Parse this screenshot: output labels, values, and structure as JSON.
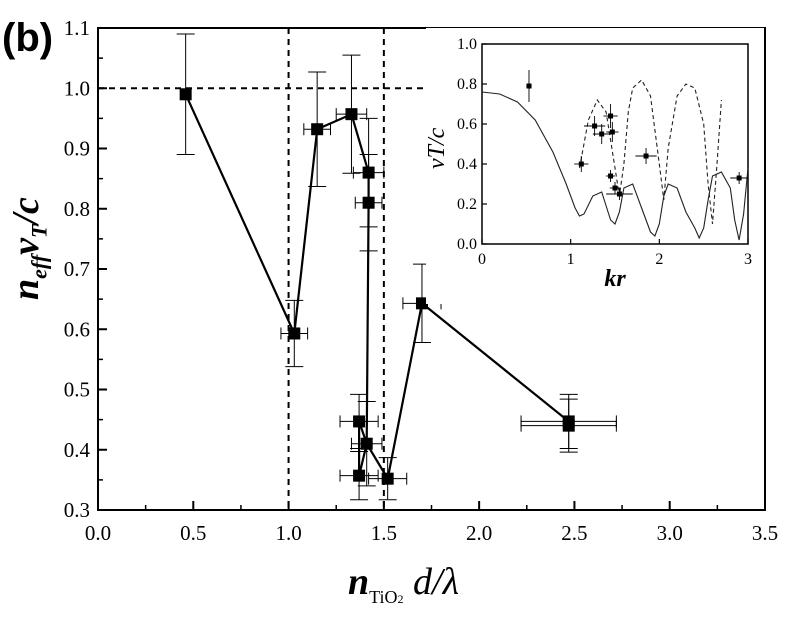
{
  "panel_label": "(b)",
  "main_ylabel": {
    "base": "n",
    "sub": "eff",
    "mid": "v",
    "mid_sub": "T",
    "tail": "/c"
  },
  "main_xlabel": {
    "base": "n",
    "sub": "TiO",
    "sub2": "2",
    "tail": " d/λ"
  },
  "chart_data": [
    {
      "name": "main",
      "type": "line",
      "xlim": [
        0.0,
        3.5
      ],
      "ylim": [
        0.3,
        1.1
      ],
      "xticks": [
        "0.0",
        "0.5",
        "1.0",
        "1.5",
        "2.0",
        "2.5",
        "3.0",
        "3.5"
      ],
      "yticks": [
        "0.3",
        "0.4",
        "0.5",
        "0.6",
        "0.7",
        "0.8",
        "0.9",
        "1.0",
        "1.1"
      ],
      "reference_lines": {
        "horizontal": [
          1.0
        ],
        "vertical": [
          1.0,
          1.5
        ]
      },
      "series": [
        {
          "name": "measured",
          "points": [
            {
              "x": 0.46,
              "y": 0.99,
              "xerr": 0.0,
              "yerr": 0.1
            },
            {
              "x": 1.03,
              "y": 0.593,
              "xerr": 0.07,
              "yerr": 0.055
            },
            {
              "x": 1.15,
              "y": 0.932,
              "xerr": 0.07,
              "yerr": 0.095
            },
            {
              "x": 1.33,
              "y": 0.957,
              "xerr": 0.08,
              "yerr": 0.098
            },
            {
              "x": 1.42,
              "y": 0.86,
              "xerr": 0.08,
              "yerr": 0.09
            },
            {
              "x": 1.42,
              "y": 0.81,
              "xerr": 0.07,
              "yerr": 0.08
            },
            {
              "x": 1.37,
              "y": 0.447,
              "xerr": 0.1,
              "yerr": 0.045
            },
            {
              "x": 1.37,
              "y": 0.357,
              "xerr": 0.1,
              "yerr": 0.04
            },
            {
              "x": 1.41,
              "y": 0.41,
              "xerr": 0.08,
              "yerr": 0.07
            },
            {
              "x": 1.52,
              "y": 0.352,
              "xerr": 0.1,
              "yerr": 0.035
            },
            {
              "x": 1.7,
              "y": 0.643,
              "xerr": 0.1,
              "yerr": 0.065
            },
            {
              "x": 2.47,
              "y": 0.447,
              "xerr": 0.25,
              "yerr": 0.045
            },
            {
              "x": 2.47,
              "y": 0.44,
              "xerr": 0.25,
              "yerr": 0.044
            }
          ],
          "line_order": [
            [
              0.46,
              0.99
            ],
            [
              1.03,
              0.593
            ],
            [
              1.15,
              0.932
            ],
            [
              1.33,
              0.957
            ],
            [
              1.42,
              0.86
            ],
            [
              1.42,
              0.81
            ],
            [
              1.41,
              0.41
            ],
            [
              1.37,
              0.357
            ],
            [
              1.37,
              0.447
            ],
            [
              1.41,
              0.41
            ],
            [
              1.52,
              0.352
            ],
            [
              1.7,
              0.643
            ],
            [
              2.47,
              0.447
            ],
            [
              2.47,
              0.44
            ]
          ]
        }
      ]
    },
    {
      "name": "inset",
      "type": "line",
      "xlabel": "kr",
      "ylabel": "v_T/c",
      "xlim": [
        0,
        3
      ],
      "ylim": [
        0.0,
        1.0
      ],
      "xticks": [
        "0",
        "1",
        "2",
        "3"
      ],
      "yticks": [
        "0.0",
        "0.2",
        "0.4",
        "0.6",
        "0.8",
        "1.0"
      ],
      "series": [
        {
          "name": "theory-solid",
          "style": "solid",
          "x": [
            0.0,
            0.2,
            0.4,
            0.6,
            0.8,
            0.95,
            1.05,
            1.1,
            1.15,
            1.25,
            1.35,
            1.45,
            1.5,
            1.55,
            1.6,
            1.7,
            1.8,
            1.9,
            1.95,
            2.0,
            2.05,
            2.1,
            2.2,
            2.3,
            2.4,
            2.45,
            2.5,
            2.55,
            2.6,
            2.7,
            2.8,
            2.85,
            2.9,
            2.95,
            3.0
          ],
          "y": [
            0.76,
            0.75,
            0.71,
            0.62,
            0.46,
            0.3,
            0.18,
            0.14,
            0.15,
            0.24,
            0.26,
            0.12,
            0.1,
            0.16,
            0.28,
            0.3,
            0.18,
            0.06,
            0.04,
            0.1,
            0.24,
            0.3,
            0.28,
            0.16,
            0.08,
            0.03,
            0.08,
            0.22,
            0.34,
            0.36,
            0.28,
            0.12,
            0.02,
            0.15,
            0.38
          ]
        },
        {
          "name": "theory-dashed",
          "style": "dashed",
          "x": [
            1.1,
            1.2,
            1.3,
            1.4,
            1.5,
            1.55,
            1.6,
            1.65,
            1.7,
            1.8,
            1.9,
            2.0,
            2.05,
            2.1,
            2.2,
            2.3,
            2.4,
            2.5,
            2.55,
            2.6,
            2.65,
            2.7
          ],
          "y": [
            0.38,
            0.62,
            0.72,
            0.66,
            0.38,
            0.24,
            0.4,
            0.66,
            0.78,
            0.82,
            0.74,
            0.4,
            0.22,
            0.48,
            0.74,
            0.8,
            0.78,
            0.6,
            0.3,
            0.1,
            0.4,
            0.72
          ]
        },
        {
          "name": "data",
          "style": "markers",
          "points": [
            {
              "x": 0.53,
              "y": 0.79,
              "xerr": 0.03,
              "yerr": 0.08
            },
            {
              "x": 1.12,
              "y": 0.4,
              "xerr": 0.08,
              "yerr": 0.04
            },
            {
              "x": 1.27,
              "y": 0.59,
              "xerr": 0.12,
              "yerr": 0.05
            },
            {
              "x": 1.35,
              "y": 0.55,
              "xerr": 0.1,
              "yerr": 0.05
            },
            {
              "x": 1.45,
              "y": 0.64,
              "xerr": 0.08,
              "yerr": 0.06
            },
            {
              "x": 1.47,
              "y": 0.56,
              "xerr": 0.07,
              "yerr": 0.05
            },
            {
              "x": 1.45,
              "y": 0.34,
              "xerr": 0.05,
              "yerr": 0.03
            },
            {
              "x": 1.5,
              "y": 0.28,
              "xerr": 0.06,
              "yerr": 0.03
            },
            {
              "x": 1.55,
              "y": 0.25,
              "xerr": 0.15,
              "yerr": 0.03
            },
            {
              "x": 1.85,
              "y": 0.44,
              "xerr": 0.12,
              "yerr": 0.04
            },
            {
              "x": 2.9,
              "y": 0.33,
              "xerr": 0.1,
              "yerr": 0.03
            }
          ]
        }
      ]
    }
  ]
}
